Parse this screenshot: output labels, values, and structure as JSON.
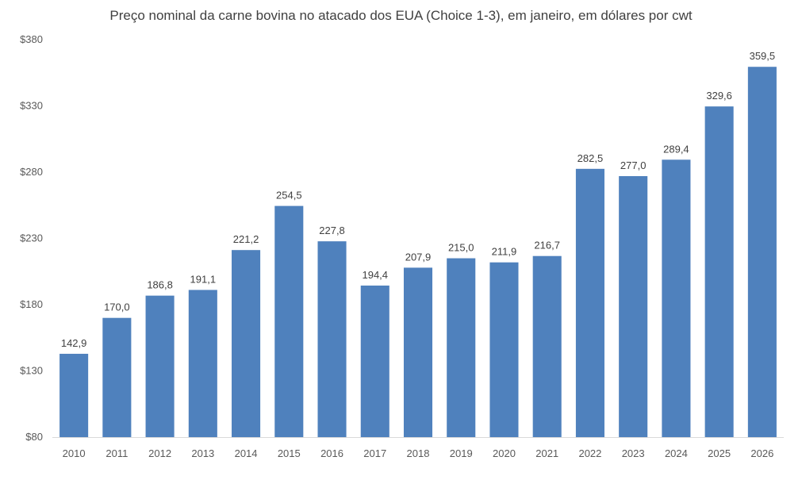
{
  "chart_data": {
    "type": "bar",
    "title": "Preço nominal da carne bovina no atacado dos EUA (Choice 1-3), em janeiro, em dólares por cwt",
    "xlabel": "",
    "ylabel": "",
    "categories": [
      "2010",
      "2011",
      "2012",
      "2013",
      "2014",
      "2015",
      "2016",
      "2017",
      "2018",
      "2019",
      "2020",
      "2021",
      "2022",
      "2023",
      "2024",
      "2025",
      "2026"
    ],
    "values": [
      142.9,
      170.0,
      186.8,
      191.1,
      221.2,
      254.5,
      227.8,
      194.4,
      207.9,
      215.0,
      211.9,
      216.7,
      282.5,
      277.0,
      289.4,
      329.6,
      359.5
    ],
    "value_labels": [
      "142,9",
      "170,0",
      "186,8",
      "191,1",
      "221,2",
      "254,5",
      "227,8",
      "194,4",
      "207,9",
      "215,0",
      "211,9",
      "216,7",
      "282,5",
      "277,0",
      "289,4",
      "329,6",
      "359,5"
    ],
    "ylim": [
      80,
      380
    ],
    "yticks": [
      80,
      130,
      180,
      230,
      280,
      330,
      380
    ],
    "ytick_labels": [
      "$80",
      "$130",
      "$180",
      "$230",
      "$280",
      "$330",
      "$380"
    ],
    "grid": false,
    "legend": "none",
    "colors": {
      "bar": "#4F81BD",
      "axis": "#D9D9D9"
    }
  }
}
